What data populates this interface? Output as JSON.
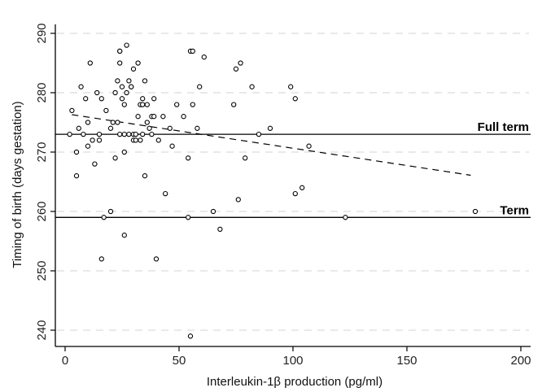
{
  "chart_data": {
    "type": "scatter",
    "xlabel": "Interleukin-1β production (pg/ml)",
    "ylabel": "Timing of birth (days gestation)",
    "xlim": [
      0,
      200
    ],
    "ylim": [
      237,
      291
    ],
    "xticks": [
      0,
      50,
      100,
      150,
      200
    ],
    "yticks": [
      240,
      250,
      260,
      270,
      280,
      290
    ],
    "grid": "horizontal dashed",
    "reference_lines": [
      {
        "y": 273,
        "label": "Full term"
      },
      {
        "y": 259,
        "label": "Term"
      }
    ],
    "fit_line": {
      "style": "dashed",
      "x": [
        3,
        178
      ],
      "y": [
        276.3,
        266.1
      ]
    },
    "points": [
      [
        2,
        273
      ],
      [
        3,
        277
      ],
      [
        5,
        266
      ],
      [
        5,
        270
      ],
      [
        6,
        274
      ],
      [
        7,
        281
      ],
      [
        8,
        273
      ],
      [
        9,
        279
      ],
      [
        10,
        275
      ],
      [
        10,
        271
      ],
      [
        11,
        285
      ],
      [
        12,
        272
      ],
      [
        13,
        268
      ],
      [
        14,
        280
      ],
      [
        15,
        273
      ],
      [
        15,
        272
      ],
      [
        16,
        279
      ],
      [
        16,
        252
      ],
      [
        17,
        259
      ],
      [
        18,
        277
      ],
      [
        20,
        260
      ],
      [
        20,
        274
      ],
      [
        21,
        275
      ],
      [
        22,
        269
      ],
      [
        22,
        280
      ],
      [
        23,
        275
      ],
      [
        23,
        282
      ],
      [
        24,
        273
      ],
      [
        24,
        285
      ],
      [
        24,
        287
      ],
      [
        24,
        287
      ],
      [
        25,
        279
      ],
      [
        25,
        281
      ],
      [
        26,
        256
      ],
      [
        26,
        273
      ],
      [
        26,
        278
      ],
      [
        26,
        270
      ],
      [
        27,
        280
      ],
      [
        27,
        288
      ],
      [
        28,
        282
      ],
      [
        28,
        273
      ],
      [
        29,
        281
      ],
      [
        29,
        281
      ],
      [
        30,
        273
      ],
      [
        30,
        272
      ],
      [
        30,
        284
      ],
      [
        31,
        273
      ],
      [
        31,
        272
      ],
      [
        32,
        285
      ],
      [
        32,
        276
      ],
      [
        33,
        272
      ],
      [
        33,
        278
      ],
      [
        34,
        279
      ],
      [
        34,
        273
      ],
      [
        34,
        278
      ],
      [
        35,
        266
      ],
      [
        35,
        282
      ],
      [
        36,
        275
      ],
      [
        36,
        278
      ],
      [
        37,
        274
      ],
      [
        38,
        273
      ],
      [
        38,
        276
      ],
      [
        39,
        279
      ],
      [
        39,
        276
      ],
      [
        40,
        252
      ],
      [
        41,
        272
      ],
      [
        43,
        276
      ],
      [
        44,
        263
      ],
      [
        46,
        274
      ],
      [
        47,
        271
      ],
      [
        49,
        278
      ],
      [
        52,
        276
      ],
      [
        54,
        269
      ],
      [
        54,
        259
      ],
      [
        55,
        287
      ],
      [
        55,
        239
      ],
      [
        56,
        287
      ],
      [
        56,
        278
      ],
      [
        58,
        274
      ],
      [
        59,
        281
      ],
      [
        61,
        286
      ],
      [
        65,
        260
      ],
      [
        68,
        257
      ],
      [
        74,
        278
      ],
      [
        75,
        284
      ],
      [
        76,
        262
      ],
      [
        77,
        285
      ],
      [
        79,
        269
      ],
      [
        82,
        281
      ],
      [
        85,
        273
      ],
      [
        90,
        274
      ],
      [
        99,
        281
      ],
      [
        101,
        279
      ],
      [
        101,
        263
      ],
      [
        104,
        264
      ],
      [
        107,
        271
      ],
      [
        123,
        259
      ],
      [
        180,
        260
      ]
    ]
  }
}
